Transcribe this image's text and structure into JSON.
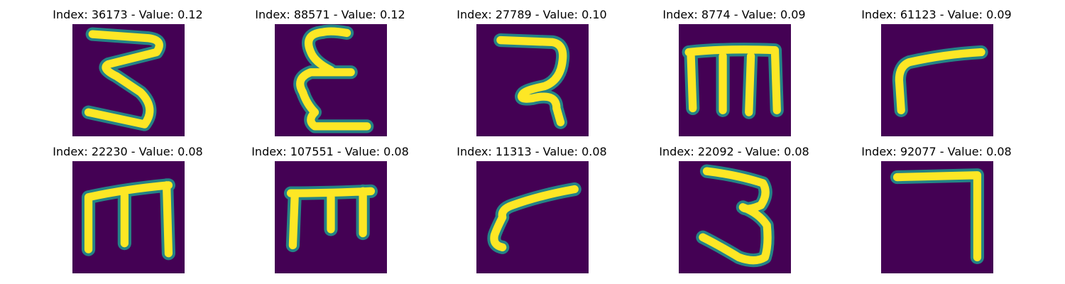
{
  "colors": {
    "background": "#440154",
    "stroke_mid": "#21918c",
    "stroke_core": "#fde725"
  },
  "panels": [
    {
      "title": "Index: 36173 - Value: 0.12",
      "glyph": "handwritten-3-sideways-icon"
    },
    {
      "title": "Index: 88571 - Value: 0.12",
      "glyph": "handwritten-epsilon-icon"
    },
    {
      "title": "Index: 27789 - Value: 0.10",
      "glyph": "handwritten-2-reversed-icon"
    },
    {
      "title": "Index: 8774 - Value: 0.09",
      "glyph": "handwritten-m-icon"
    },
    {
      "title": "Index: 61123 - Value: 0.09",
      "glyph": "handwritten-r-icon"
    },
    {
      "title": "Index: 22230 - Value: 0.08",
      "glyph": "handwritten-m-icon"
    },
    {
      "title": "Index: 107551 - Value: 0.08",
      "glyph": "handwritten-m-icon"
    },
    {
      "title": "Index: 11313 - Value: 0.08",
      "glyph": "handwritten-r-icon"
    },
    {
      "title": "Index: 22092 - Value: 0.08",
      "glyph": "handwritten-3-icon"
    },
    {
      "title": "Index: 92077 - Value: 0.08",
      "glyph": "handwritten-7-icon"
    }
  ]
}
